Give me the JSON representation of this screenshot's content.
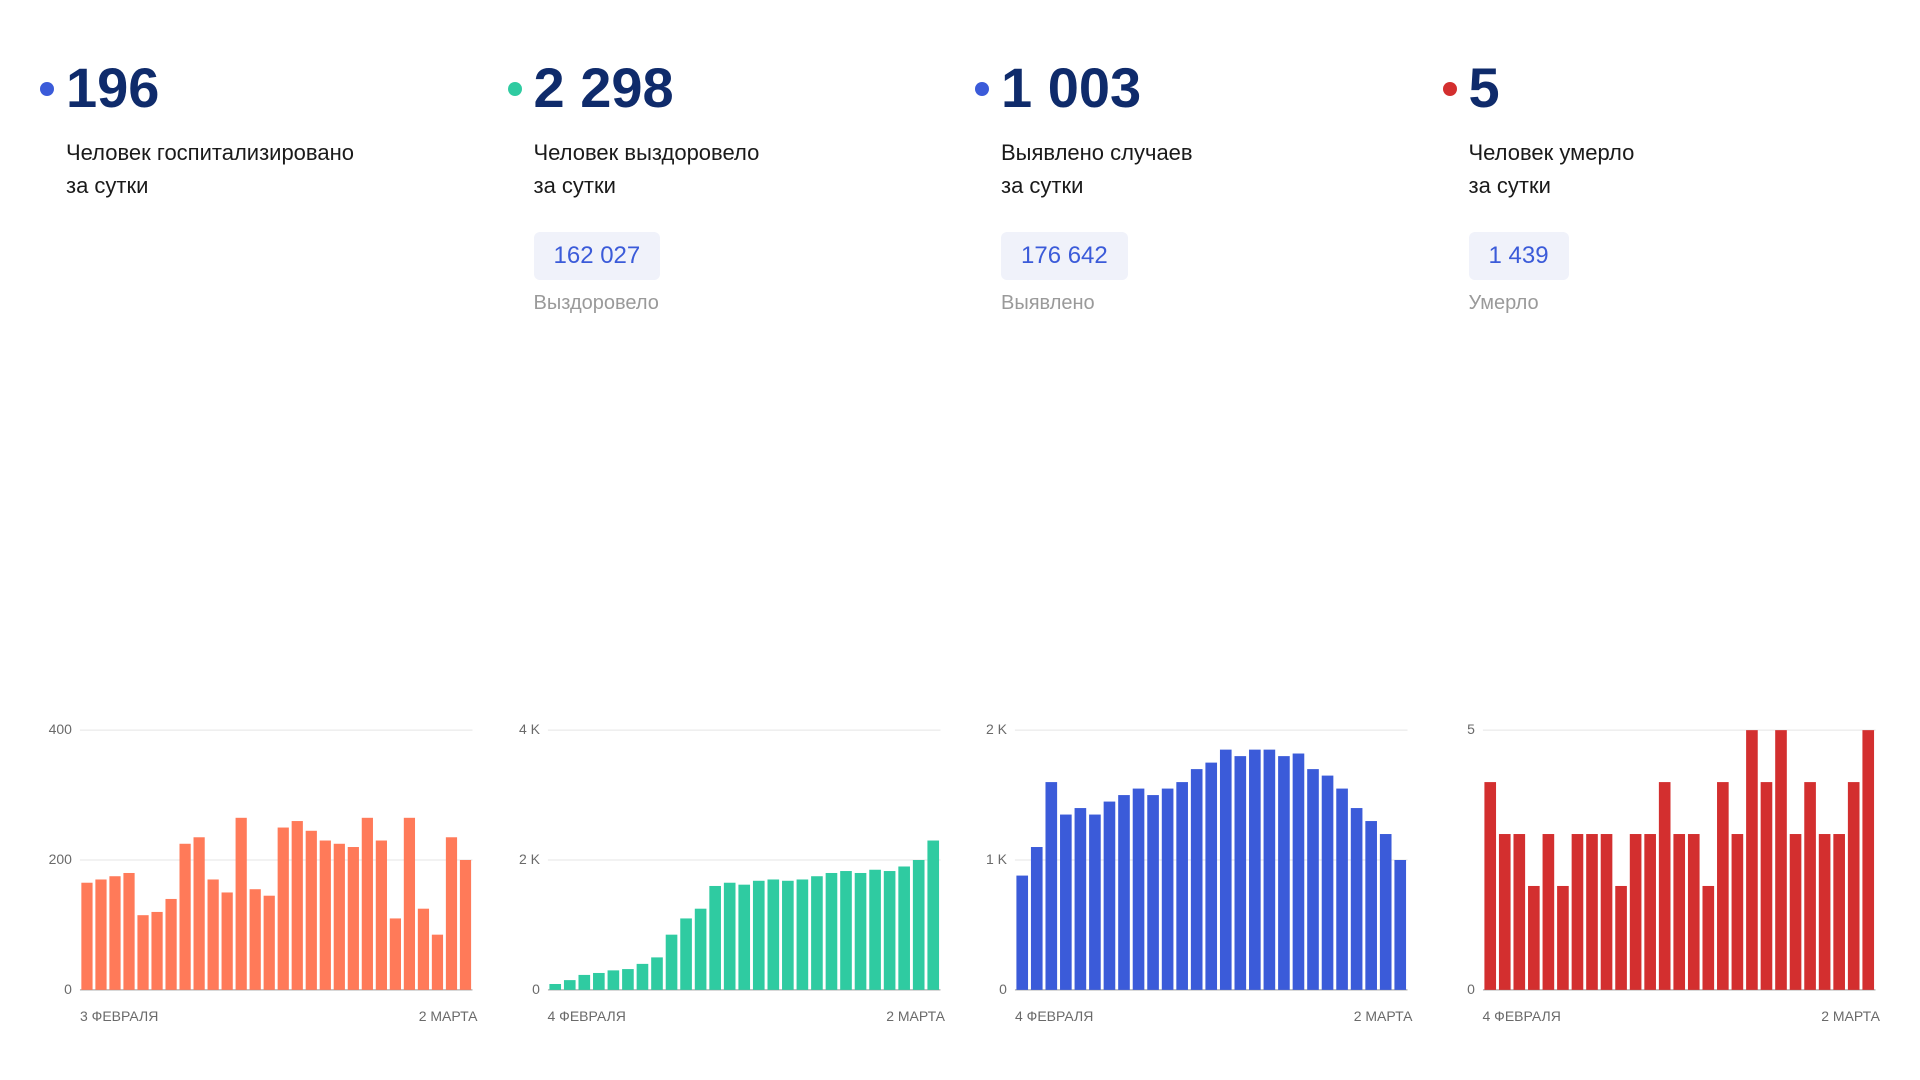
{
  "panels": [
    {
      "id": "hospitalized",
      "dot_color": "#3b5bd9",
      "value": "196",
      "value_color": "#0f2b6b",
      "label_line1": "Человек госпитализировано",
      "label_line2": "за сутки",
      "total_value": null,
      "total_label": null,
      "chart": {
        "type": "bar",
        "bar_color": "#ff7a59",
        "ymax": 400,
        "yticks": [
          0,
          200,
          400
        ],
        "ytick_labels": [
          "0",
          "200",
          "400"
        ],
        "x_start": "3 ФЕВРАЛЯ",
        "x_end": "2 МАРТА",
        "values": [
          165,
          170,
          175,
          180,
          115,
          120,
          140,
          225,
          235,
          170,
          150,
          265,
          155,
          145,
          250,
          260,
          245,
          230,
          225,
          220,
          265,
          230,
          110,
          265,
          125,
          85,
          235,
          200
        ]
      }
    },
    {
      "id": "recovered",
      "dot_color": "#2fcba1",
      "value": "2 298",
      "value_color": "#0f2b6b",
      "label_line1": "Человек выздоровело",
      "label_line2": "за сутки",
      "total_value": "162 027",
      "total_label": "Выздоровело",
      "chart": {
        "type": "bar",
        "bar_color": "#2fcba1",
        "ymax": 4000,
        "yticks": [
          0,
          2000,
          4000
        ],
        "ytick_labels": [
          "0",
          "2 K",
          "4 K"
        ],
        "x_start": "4 ФЕВРАЛЯ",
        "x_end": "2 МАРТА",
        "values": [
          90,
          150,
          230,
          260,
          300,
          320,
          400,
          500,
          850,
          1100,
          1250,
          1600,
          1650,
          1620,
          1680,
          1700,
          1680,
          1700,
          1750,
          1800,
          1830,
          1800,
          1850,
          1830,
          1900,
          2000,
          2300
        ]
      }
    },
    {
      "id": "detected",
      "dot_color": "#3b5bd9",
      "value": "1 003",
      "value_color": "#0f2b6b",
      "label_line1": "Выявлено случаев",
      "label_line2": "за сутки",
      "total_value": "176 642",
      "total_label": "Выявлено",
      "chart": {
        "type": "bar",
        "bar_color": "#3b5bd9",
        "ymax": 2000,
        "yticks": [
          0,
          1000,
          2000
        ],
        "ytick_labels": [
          "0",
          "1 K",
          "2 K"
        ],
        "x_start": "4 ФЕВРАЛЯ",
        "x_end": "2 МАРТА",
        "values": [
          880,
          1100,
          1600,
          1350,
          1400,
          1350,
          1450,
          1500,
          1550,
          1500,
          1550,
          1600,
          1700,
          1750,
          1850,
          1800,
          1850,
          1850,
          1800,
          1820,
          1700,
          1650,
          1550,
          1400,
          1300,
          1200,
          1000
        ]
      }
    },
    {
      "id": "deaths",
      "dot_color": "#d32f2f",
      "value": "5",
      "value_color": "#0f2b6b",
      "label_line1": "Человек умерло",
      "label_line2": "за сутки",
      "total_value": "1 439",
      "total_label": "Умерло",
      "chart": {
        "type": "bar",
        "bar_color": "#d32f2f",
        "ymax": 5,
        "yticks": [
          0,
          5
        ],
        "ytick_labels": [
          "0",
          "5"
        ],
        "x_start": "4 ФЕВРАЛЯ",
        "x_end": "2 МАРТА",
        "values": [
          4,
          3,
          3,
          2,
          3,
          2,
          3,
          3,
          3,
          2,
          3,
          3,
          4,
          3,
          3,
          2,
          4,
          3,
          5,
          4,
          5,
          3,
          4,
          3,
          3,
          4,
          5
        ]
      }
    }
  ],
  "layout": {
    "background": "#ffffff",
    "grid_color": "#e5e5e5",
    "axis_text_color": "#6a6a6a",
    "label_text_color": "#1a1a1a",
    "total_badge_bg": "#f0f2fa",
    "total_badge_text": "#3b5bd9",
    "total_label_color": "#9a9a9a",
    "stat_fontsize": 56,
    "label_fontsize": 22,
    "badge_fontsize": 24,
    "axis_fontsize": 14
  }
}
